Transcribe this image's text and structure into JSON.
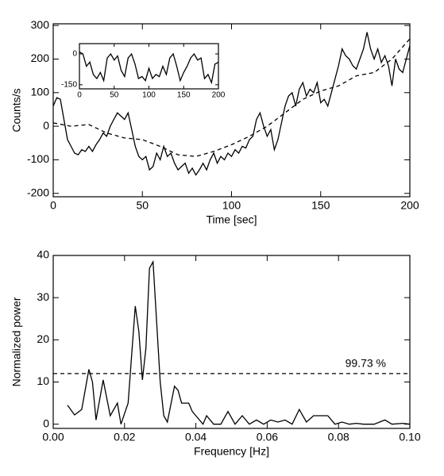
{
  "chart_data": [
    {
      "type": "line",
      "xlabel": "Time [sec]",
      "ylabel": "Counts/s",
      "xlim": [
        0,
        200
      ],
      "xticks": [
        0,
        50,
        100,
        150,
        200
      ],
      "ylim": [
        -210,
        305
      ],
      "yticks": [
        -200,
        -100,
        0,
        100,
        200,
        300
      ],
      "series": [
        {
          "color": "#000000",
          "dashed": false,
          "x": [
            0,
            2,
            4,
            6,
            8,
            10,
            12,
            14,
            16,
            18,
            20,
            22,
            24,
            26,
            28,
            30,
            32,
            34,
            36,
            38,
            40,
            42,
            44,
            46,
            48,
            50,
            52,
            54,
            56,
            58,
            60,
            62,
            64,
            66,
            68,
            70,
            72,
            74,
            76,
            78,
            80,
            82,
            84,
            86,
            88,
            90,
            92,
            94,
            96,
            98,
            100,
            102,
            104,
            106,
            108,
            110,
            112,
            114,
            116,
            118,
            120,
            122,
            124,
            126,
            128,
            130,
            132,
            134,
            136,
            138,
            140,
            142,
            144,
            146,
            148,
            150,
            152,
            154,
            156,
            158,
            160,
            162,
            164,
            166,
            168,
            170,
            172,
            174,
            176,
            178,
            180,
            182,
            184,
            186,
            188,
            190,
            192,
            194,
            196,
            198,
            200
          ],
          "values": [
            60,
            85,
            80,
            20,
            -40,
            -60,
            -80,
            -85,
            -70,
            -75,
            -60,
            -75,
            -55,
            -40,
            -20,
            -30,
            0,
            20,
            40,
            30,
            20,
            40,
            -10,
            -60,
            -90,
            -100,
            -90,
            -130,
            -120,
            -80,
            -100,
            -60,
            -90,
            -80,
            -110,
            -130,
            -120,
            -110,
            -140,
            -125,
            -145,
            -130,
            -110,
            -130,
            -100,
            -80,
            -110,
            -90,
            -100,
            -80,
            -90,
            -70,
            -80,
            -60,
            -65,
            -40,
            -30,
            20,
            40,
            0,
            -30,
            -10,
            -70,
            -40,
            10,
            60,
            90,
            100,
            60,
            110,
            130,
            90,
            110,
            100,
            130,
            70,
            80,
            60,
            100,
            140,
            180,
            230,
            210,
            200,
            180,
            170,
            200,
            230,
            280,
            230,
            200,
            230,
            190,
            210,
            180,
            120,
            200,
            170,
            160,
            200,
            240
          ]
        },
        {
          "color": "#000000",
          "dashed": true,
          "x": [
            0,
            10,
            20,
            30,
            40,
            50,
            60,
            70,
            80,
            90,
            100,
            110,
            120,
            130,
            140,
            150,
            160,
            170,
            180,
            190,
            200
          ],
          "values": [
            10,
            0,
            5,
            -20,
            -35,
            -40,
            -60,
            -85,
            -90,
            -75,
            -55,
            -30,
            0,
            40,
            80,
            105,
            120,
            150,
            160,
            200,
            260
          ]
        }
      ]
    },
    {
      "type": "line",
      "xlim": [
        0,
        200
      ],
      "xticks": [
        0,
        50,
        100,
        150,
        200
      ],
      "ylim": [
        -170,
        50
      ],
      "yticks": [
        -150,
        0
      ],
      "series": [
        {
          "color": "#000000",
          "dashed": false,
          "x": [
            0,
            5,
            10,
            15,
            20,
            25,
            30,
            35,
            40,
            45,
            50,
            55,
            60,
            65,
            70,
            75,
            80,
            85,
            90,
            95,
            100,
            105,
            110,
            115,
            120,
            125,
            130,
            135,
            140,
            145,
            150,
            155,
            160,
            165,
            170,
            175,
            180,
            185,
            190,
            195,
            200
          ],
          "values": [
            10,
            0,
            -60,
            -40,
            -100,
            -120,
            -90,
            -130,
            -20,
            0,
            -30,
            -10,
            -80,
            -110,
            -20,
            0,
            -50,
            -120,
            -110,
            -130,
            -70,
            -120,
            -100,
            -110,
            -60,
            -100,
            -20,
            0,
            -60,
            -130,
            -90,
            -60,
            -20,
            0,
            -30,
            -20,
            -120,
            -100,
            -140,
            -50,
            -40
          ]
        }
      ]
    },
    {
      "type": "line",
      "xlabel": "Frequency [Hz]",
      "ylabel": "Normalized power",
      "xlim": [
        0,
        0.1
      ],
      "xticks": [
        {
          "value": 0,
          "label": "0.00"
        },
        {
          "value": 0.02,
          "label": "0.02"
        },
        {
          "value": 0.04,
          "label": "0.04"
        },
        {
          "value": 0.06,
          "label": "0.06"
        },
        {
          "value": 0.08,
          "label": "0.08"
        },
        {
          "value": 0.1,
          "label": "0.10"
        }
      ],
      "ylim": [
        -1,
        40
      ],
      "yticks": [
        0,
        10,
        20,
        30,
        40
      ],
      "hline": {
        "value": 12,
        "label": "99.73 %"
      },
      "series": [
        {
          "color": "#000000",
          "dashed": false,
          "x": [
            0.004,
            0.006,
            0.008,
            0.01,
            0.011,
            0.012,
            0.014,
            0.016,
            0.018,
            0.019,
            0.021,
            0.023,
            0.024,
            0.025,
            0.026,
            0.027,
            0.028,
            0.03,
            0.031,
            0.032,
            0.034,
            0.035,
            0.036,
            0.038,
            0.039,
            0.04,
            0.042,
            0.043,
            0.045,
            0.047,
            0.049,
            0.051,
            0.053,
            0.055,
            0.057,
            0.059,
            0.061,
            0.063,
            0.065,
            0.067,
            0.069,
            0.071,
            0.073,
            0.075,
            0.077,
            0.079,
            0.081,
            0.083,
            0.085,
            0.087,
            0.09,
            0.093,
            0.095,
            0.098,
            0.1
          ],
          "values": [
            4.5,
            2.2,
            3.5,
            13,
            10,
            1,
            10.5,
            2,
            5,
            0,
            5,
            28,
            22,
            10.5,
            18,
            37,
            38.5,
            10,
            2,
            0.5,
            9,
            8,
            5,
            5,
            3,
            2,
            0,
            2,
            0,
            0,
            3,
            0,
            2,
            0,
            1,
            0,
            1,
            0.5,
            1,
            0,
            3.5,
            0.5,
            2,
            2,
            2,
            0,
            0.5,
            0,
            0.2,
            0,
            0,
            1,
            0,
            0.2,
            0
          ]
        }
      ]
    }
  ]
}
